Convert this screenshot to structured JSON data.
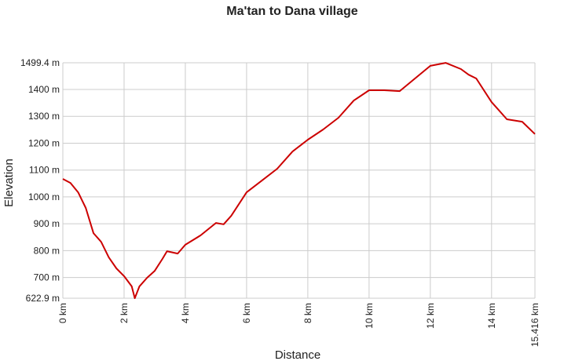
{
  "chart_data": {
    "type": "line",
    "title": "Ma'tan to Dana village",
    "x_label": "Distance",
    "y_label": "Elevation",
    "x": [
      0,
      0.25,
      0.5,
      0.75,
      1.0,
      1.25,
      1.5,
      1.75,
      2.0,
      2.25,
      2.35,
      2.5,
      2.75,
      3.0,
      3.25,
      3.4,
      3.75,
      4.0,
      4.5,
      5.0,
      5.25,
      5.5,
      6.0,
      6.5,
      7.0,
      7.5,
      8.0,
      8.5,
      9.0,
      9.5,
      10.0,
      10.5,
      11.0,
      11.5,
      12.0,
      12.5,
      13.0,
      13.25,
      13.5,
      14.0,
      14.5,
      15.0,
      15.416
    ],
    "series": [
      {
        "name": "Elevation",
        "color": "#cc0000",
        "values": [
          1067,
          1052,
          1017,
          959,
          865,
          833,
          775,
          734,
          705,
          667,
          623,
          667,
          699,
          725,
          769,
          798,
          789,
          822,
          857,
          903,
          898,
          930,
          1017,
          1061,
          1105,
          1169,
          1213,
          1251,
          1295,
          1359,
          1397,
          1397,
          1394,
          1441,
          1488,
          1499,
          1476,
          1455,
          1441,
          1353,
          1289,
          1280,
          1234
        ]
      }
    ],
    "xlim": [
      0,
      15.416
    ],
    "xticks": [
      {
        "value": 0,
        "label": "0 km"
      },
      {
        "value": 2,
        "label": "2 km"
      },
      {
        "value": 4,
        "label": "4 km"
      },
      {
        "value": 6,
        "label": "6 km"
      },
      {
        "value": 8,
        "label": "8 km"
      },
      {
        "value": 10,
        "label": "10 km"
      },
      {
        "value": 12,
        "label": "12 km"
      },
      {
        "value": 14,
        "label": "14 km"
      },
      {
        "value": 15.416,
        "label": "15.416 km"
      }
    ],
    "ylim": [
      622.9,
      1499.4
    ],
    "yticks": [
      {
        "value": 622.9,
        "label": "622.9 m"
      },
      {
        "value": 700,
        "label": "700 m"
      },
      {
        "value": 800,
        "label": "800 m"
      },
      {
        "value": 900,
        "label": "900 m"
      },
      {
        "value": 1000,
        "label": "1000 m"
      },
      {
        "value": 1100,
        "label": "1100 m"
      },
      {
        "value": 1200,
        "label": "1200 m"
      },
      {
        "value": 1300,
        "label": "1300 m"
      },
      {
        "value": 1400,
        "label": "1400 m"
      },
      {
        "value": 1499.4,
        "label": "1499.4 m"
      }
    ],
    "grid": true
  }
}
